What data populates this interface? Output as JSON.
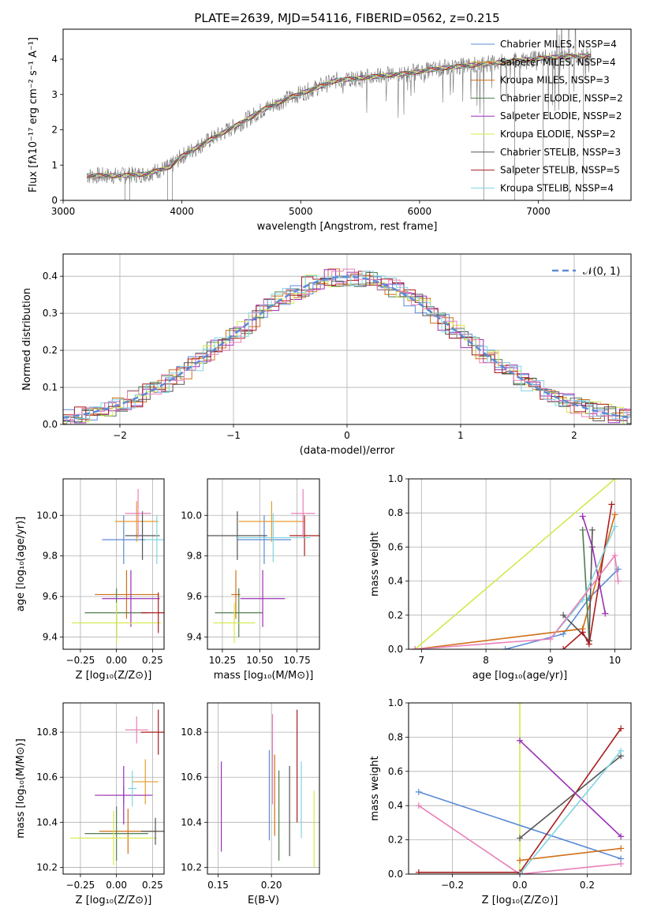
{
  "figure_title": "PLATE=2639, MJD=54116, FIBERID=0562, z=0.215",
  "colors": {
    "cm": "#5b8bd6",
    "sm": "#e69a2e",
    "km": "#d16f17",
    "ce": "#4f7d4f",
    "se": "#9c2fb5",
    "ke": "#d4e84a",
    "cs": "#555555",
    "ss": "#a81c1c",
    "ks": "#7fd4e0",
    "pink": "#e87fb8",
    "grid": "#b0b0b0"
  },
  "chart_data": [
    {
      "type": "line",
      "title": "PLATE=2639, MJD=54116, FIBERID=0562, z=0.215",
      "xlabel": "wavelength [Angstrom, rest frame]",
      "ylabel": "Flux [fλ10⁻¹⁷ erg cm⁻² s⁻¹ A⁻¹]",
      "xlim": [
        3000,
        7780
      ],
      "ylim": [
        0,
        4.85
      ],
      "xticks": [
        "3000",
        "4000",
        "5000",
        "6000",
        "7000"
      ],
      "yticks": [
        "0",
        "1",
        "2",
        "3",
        "4"
      ],
      "grid": false,
      "legend": "top-right",
      "series": [
        {
          "name": "Chabrier MILES, NSSP=4"
        },
        {
          "name": "Salpeter MILES, NSSP=4"
        },
        {
          "name": "Kroupa MILES, NSSP=3"
        },
        {
          "name": "Chabrier ELODIE, NSSP=2"
        },
        {
          "name": "Salpeter ELODIE, NSSP=2"
        },
        {
          "name": "Kroupa ELODIE, NSSP=2"
        },
        {
          "name": "Chabrier STELIB, NSSP=3"
        },
        {
          "name": "Salpeter STELIB, NSSP=5"
        },
        {
          "name": "Kroupa STELIB, NSSP=4"
        }
      ],
      "continuum": {
        "x": [
          3200,
          3500,
          3700,
          3900,
          4000,
          4200,
          4500,
          4700,
          4900,
          5100,
          5300,
          5600,
          5900,
          6200,
          6500,
          6800,
          7100,
          7400,
          7450
        ],
        "y": [
          0.7,
          0.7,
          0.75,
          0.95,
          1.25,
          1.65,
          2.2,
          2.6,
          2.9,
          3.15,
          3.4,
          3.5,
          3.6,
          3.75,
          3.85,
          3.95,
          4.05,
          4.1,
          4.1
        ]
      }
    },
    {
      "type": "step",
      "xlabel": "(data-model)/error",
      "ylabel": "Normed distribution",
      "xlim": [
        -2.5,
        2.5
      ],
      "ylim": [
        0,
        0.46
      ],
      "xticks": [
        "−2",
        "−1",
        "0",
        "1",
        "2"
      ],
      "yticks": [
        "0.0",
        "0.1",
        "0.2",
        "0.3",
        "0.4"
      ],
      "grid": true,
      "legend": "top-right",
      "reference_label": "𝒩(0, 1)"
    },
    {
      "type": "scatter",
      "xlabel": "Z [log₁₀(Z/Z⊙)]",
      "ylabel": "age  [log₁₀(age/yr)]",
      "xlim": [
        -0.37,
        0.33
      ],
      "ylim": [
        9.34,
        10.18
      ],
      "xticks": [
        "−0.25",
        "0.00",
        "0.25"
      ],
      "yticks": [
        "9.4",
        "9.6",
        "9.8",
        "10.0"
      ],
      "points": [
        {
          "c": "cm",
          "x": 0.05,
          "y": 9.88,
          "ex": 0.15,
          "ey": 0.12
        },
        {
          "c": "sm",
          "x": 0.14,
          "y": 9.97,
          "ex": 0.15,
          "ey": 0.1
        },
        {
          "c": "km",
          "x": 0.07,
          "y": 9.61,
          "ex": 0.22,
          "ey": 0.12
        },
        {
          "c": "ce",
          "x": 0.0,
          "y": 9.52,
          "ex": 0.22,
          "ey": 0.12
        },
        {
          "c": "se",
          "x": 0.1,
          "y": 9.59,
          "ex": 0.2,
          "ey": 0.14
        },
        {
          "c": "ke",
          "x": 0.0,
          "y": 9.47,
          "ex": 0.31,
          "ey": 0.1
        },
        {
          "c": "cs",
          "x": 0.18,
          "y": 9.9,
          "ex": 0.12,
          "ey": 0.12
        },
        {
          "c": "ss",
          "x": 0.29,
          "y": 9.52,
          "ex": 0.12,
          "ey": 0.1
        },
        {
          "c": "ks",
          "x": 0.28,
          "y": 9.88,
          "ex": 0.08,
          "ey": 0.12
        },
        {
          "c": "pink",
          "x": 0.15,
          "y": 10.01,
          "ex": 0.09,
          "ey": 0.12
        }
      ]
    },
    {
      "type": "scatter",
      "xlabel": "mass [log₁₀(M/M⊙)]",
      "xlim": [
        10.15,
        10.9
      ],
      "ylim": [
        9.34,
        10.18
      ],
      "xticks": [
        "10.25",
        "10.50",
        "10.75"
      ],
      "yticks": [
        "9.4",
        "9.6",
        "9.8",
        "10.0"
      ],
      "points": [
        {
          "c": "cm",
          "x": 10.53,
          "y": 9.88,
          "ex": 0.18,
          "ey": 0.12
        },
        {
          "c": "sm",
          "x": 10.58,
          "y": 9.97,
          "ex": 0.22,
          "ey": 0.1
        },
        {
          "c": "km",
          "x": 10.34,
          "y": 9.61,
          "ex": 0.03,
          "ey": 0.12
        },
        {
          "c": "ce",
          "x": 10.36,
          "y": 9.52,
          "ex": 0.16,
          "ey": 0.12
        },
        {
          "c": "se",
          "x": 10.52,
          "y": 9.59,
          "ex": 0.15,
          "ey": 0.14
        },
        {
          "c": "ke",
          "x": 10.33,
          "y": 9.47,
          "ex": 0.14,
          "ey": 0.1
        },
        {
          "c": "cs",
          "x": 10.35,
          "y": 9.9,
          "ex": 0.2,
          "ey": 0.12
        },
        {
          "c": "ss",
          "x": 10.8,
          "y": 9.9,
          "ex": 0.1,
          "ey": 0.1
        },
        {
          "c": "ks",
          "x": 10.59,
          "y": 9.89,
          "ex": 0.25,
          "ey": 0.12
        },
        {
          "c": "pink",
          "x": 10.79,
          "y": 10.01,
          "ex": 0.08,
          "ey": 0.12
        }
      ]
    },
    {
      "type": "line",
      "xlabel": "age  [log₁₀(age/yr)]",
      "ylabel": "mass weight",
      "xlim": [
        6.8,
        10.25
      ],
      "ylim": [
        0,
        1
      ],
      "xticks": [
        "7",
        "8",
        "9",
        "10"
      ],
      "yticks": [
        "0.0",
        "0.2",
        "0.4",
        "0.6",
        "0.8",
        "1.0"
      ],
      "lines": [
        {
          "c": "ke",
          "x": [
            6.9,
            10.0
          ],
          "y": [
            0.0,
            1.0
          ]
        },
        {
          "c": "cm",
          "x": [
            8.3,
            9.2,
            9.6,
            10.05
          ],
          "y": [
            0.0,
            0.09,
            0.3,
            0.47
          ]
        },
        {
          "c": "km",
          "x": [
            6.9,
            9.5,
            10.0
          ],
          "y": [
            0.0,
            0.12,
            0.79
          ]
        },
        {
          "c": "ce",
          "x": [
            9.5,
            9.6
          ],
          "y": [
            0.7,
            0.05
          ]
        },
        {
          "c": "se",
          "x": [
            9.5,
            9.65,
            9.85
          ],
          "y": [
            0.78,
            0.6,
            0.21
          ]
        },
        {
          "c": "cs",
          "x": [
            9.2,
            9.6,
            9.65
          ],
          "y": [
            0.2,
            0.05,
            0.7
          ]
        },
        {
          "c": "ss",
          "x": [
            9.2,
            9.5,
            9.6,
            9.95
          ],
          "y": [
            0.0,
            0.1,
            0.03,
            0.85
          ]
        },
        {
          "c": "ks",
          "x": [
            9.0,
            9.5,
            10.0
          ],
          "y": [
            0.06,
            0.29,
            0.72
          ]
        },
        {
          "c": "pink",
          "x": [
            6.9,
            9.0,
            10.0,
            10.05
          ],
          "y": [
            0.0,
            0.06,
            0.55,
            0.4
          ]
        }
      ]
    },
    {
      "type": "scatter",
      "xlabel": "Z [log₁₀(Z/Z⊙)]",
      "ylabel": "mass [log₁₀(M/M⊙)]",
      "xlim": [
        -0.37,
        0.33
      ],
      "ylim": [
        10.17,
        10.93
      ],
      "xticks": [
        "−0.25",
        "0.00",
        "0.25"
      ],
      "yticks": [
        "10.2",
        "10.4",
        "10.6",
        "10.8"
      ],
      "points": [
        {
          "c": "cm",
          "x": 0.05,
          "y": 10.52,
          "ex": 0.15,
          "ey": 0.04
        },
        {
          "c": "sm",
          "x": 0.2,
          "y": 10.58,
          "ex": 0.09,
          "ey": 0.1
        },
        {
          "c": "km",
          "x": 0.08,
          "y": 10.36,
          "ex": 0.2,
          "ey": 0.1
        },
        {
          "c": "ce",
          "x": 0.0,
          "y": 10.35,
          "ex": 0.22,
          "ey": 0.12
        },
        {
          "c": "se",
          "x": 0.05,
          "y": 10.52,
          "ex": 0.2,
          "ey": 0.13
        },
        {
          "c": "ke",
          "x": -0.02,
          "y": 10.33,
          "ex": 0.3,
          "ey": 0.12
        },
        {
          "c": "cs",
          "x": 0.27,
          "y": 10.36,
          "ex": 0.1,
          "ey": 0.06
        },
        {
          "c": "ss",
          "x": 0.29,
          "y": 10.8,
          "ex": 0.12,
          "ey": 0.1
        },
        {
          "c": "ks",
          "x": 0.11,
          "y": 10.55,
          "ex": 0.03,
          "ey": 0.08
        },
        {
          "c": "pink",
          "x": 0.14,
          "y": 10.81,
          "ex": 0.08,
          "ey": 0.06
        }
      ]
    },
    {
      "type": "errorbar",
      "xlabel": "E(B-V)",
      "xlim": [
        0.14,
        0.245
      ],
      "ylim": [
        10.17,
        10.93
      ],
      "xticks": [
        "0.15",
        "0.20"
      ],
      "yticks": [
        "10.2",
        "10.4",
        "10.6",
        "10.8"
      ],
      "points": [
        {
          "c": "se",
          "x": 0.153,
          "y": 10.47,
          "ey": 0.2
        },
        {
          "c": "cm",
          "x": 0.198,
          "y": 10.52,
          "ey": 0.2
        },
        {
          "c": "km",
          "x": 0.203,
          "y": 10.52,
          "ey": 0.18
        },
        {
          "c": "pink",
          "x": 0.201,
          "y": 10.68,
          "ey": 0.2
        },
        {
          "c": "ce",
          "x": 0.207,
          "y": 10.43,
          "ey": 0.2
        },
        {
          "c": "cs",
          "x": 0.217,
          "y": 10.45,
          "ey": 0.2
        },
        {
          "c": "ss",
          "x": 0.224,
          "y": 10.65,
          "ey": 0.25
        },
        {
          "c": "ks",
          "x": 0.228,
          "y": 10.5,
          "ey": 0.17
        },
        {
          "c": "ke",
          "x": 0.24,
          "y": 10.37,
          "ey": 0.17
        }
      ]
    },
    {
      "type": "line",
      "xlabel": "Z [log₁₀(Z/Z⊙)]",
      "ylabel": "mass weight",
      "xlim": [
        -0.33,
        0.33
      ],
      "ylim": [
        0,
        1
      ],
      "xticks": [
        "−0.2",
        "0.0",
        "0.2"
      ],
      "yticks": [
        "0.0",
        "0.2",
        "0.4",
        "0.6",
        "0.8",
        "1.0"
      ],
      "lines": [
        {
          "c": "ke",
          "x": [
            0.0,
            0.0
          ],
          "y": [
            1.0,
            0.0
          ]
        },
        {
          "c": "cm",
          "x": [
            -0.3,
            0.3
          ],
          "y": [
            0.48,
            0.09
          ]
        },
        {
          "c": "pink",
          "x": [
            -0.3,
            0.0,
            0.3
          ],
          "y": [
            0.4,
            0.0,
            0.06
          ]
        },
        {
          "c": "ss",
          "x": [
            -0.3,
            0.0,
            0.3
          ],
          "y": [
            0.01,
            0.01,
            0.85
          ]
        },
        {
          "c": "cs",
          "x": [
            0.0,
            0.3
          ],
          "y": [
            0.21,
            0.69
          ]
        },
        {
          "c": "se",
          "x": [
            0.0,
            0.3
          ],
          "y": [
            0.78,
            0.22
          ]
        },
        {
          "c": "km",
          "x": [
            0.0,
            0.3
          ],
          "y": [
            0.08,
            0.15
          ]
        },
        {
          "c": "ks",
          "x": [
            0.0,
            0.3
          ],
          "y": [
            0.0,
            0.72
          ]
        }
      ]
    }
  ]
}
